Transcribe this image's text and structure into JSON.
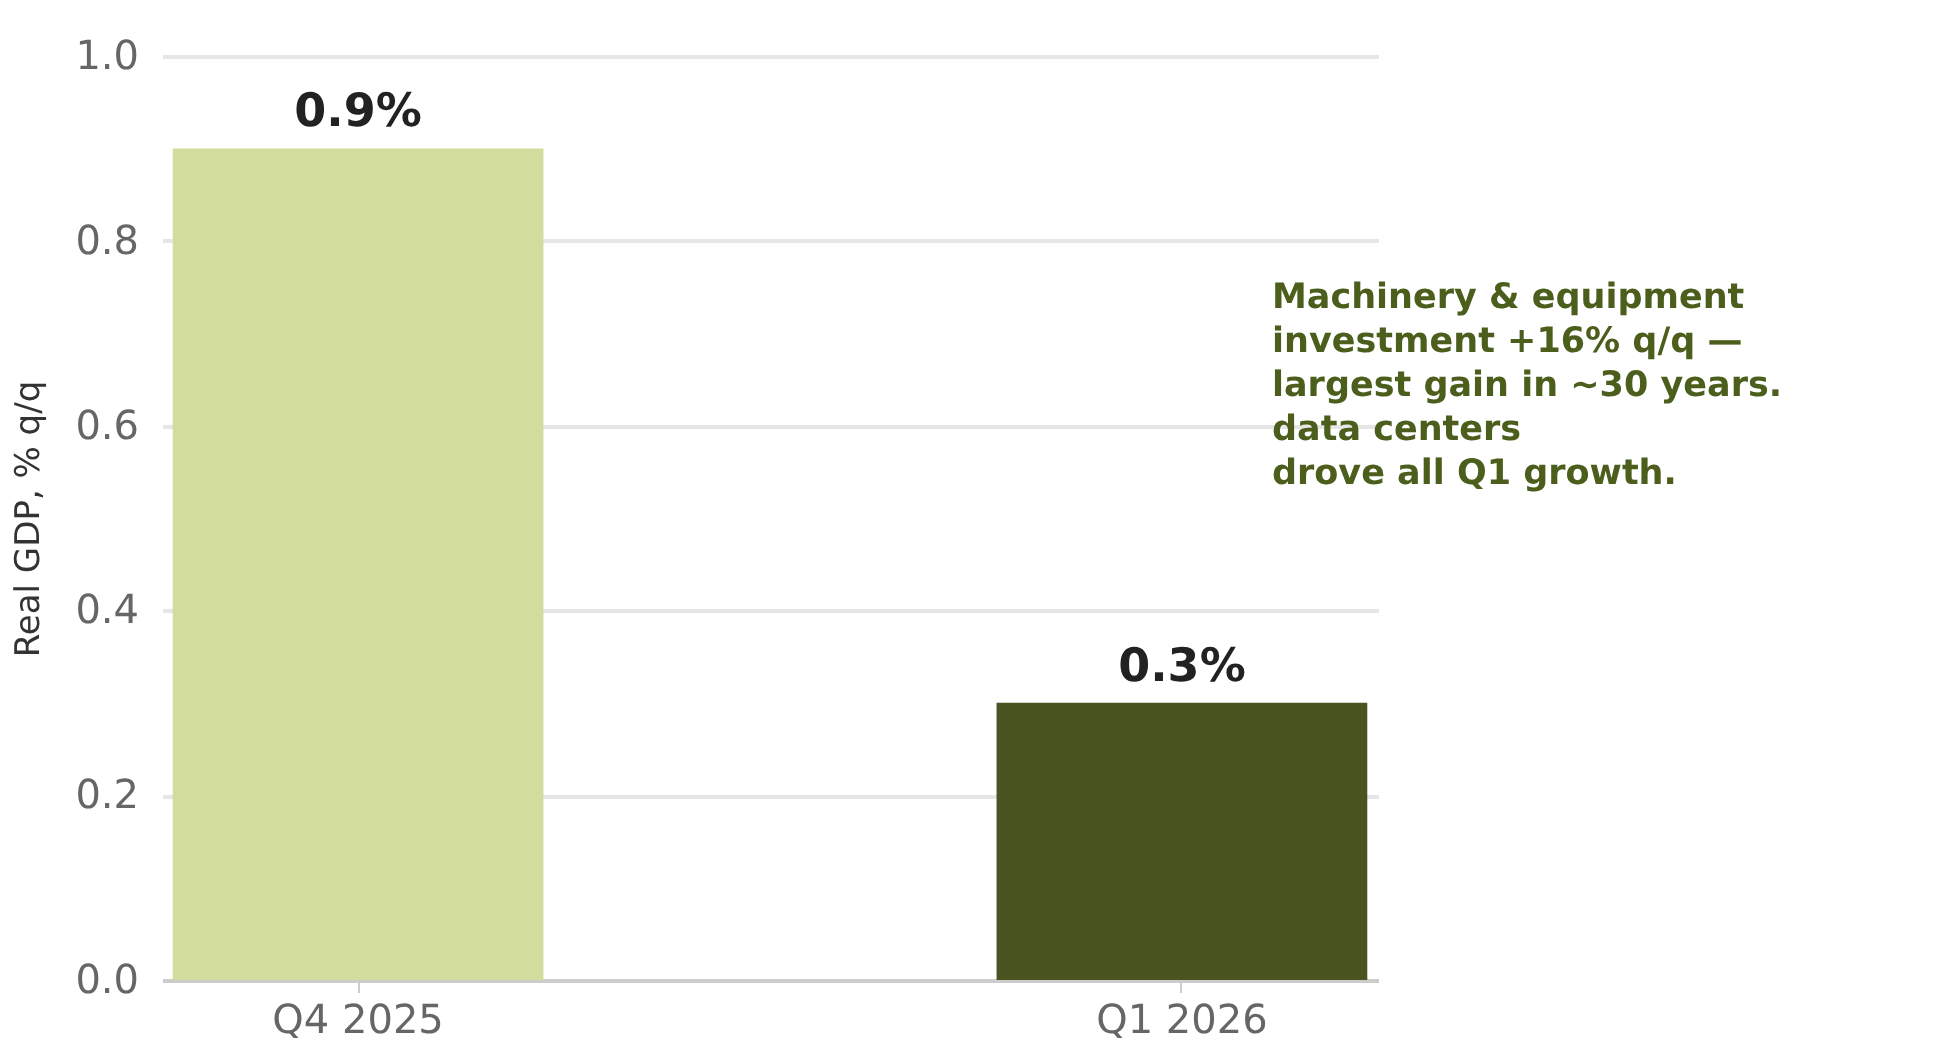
{
  "chart_data": {
    "type": "bar",
    "ylabel": "Real GDP, % q/q",
    "categories": [
      "Q4 2025",
      "Q1 2026"
    ],
    "values": [
      0.9,
      0.3
    ],
    "colors": [
      "#d2dc9c",
      "#4a5420"
    ],
    "value_labels": [
      "0.9%",
      "0.3%"
    ],
    "ylim": [
      0,
      1.0
    ],
    "yticks": [
      {
        "value": 0,
        "label": "0.0"
      },
      {
        "value": 0.2,
        "label": "0.2"
      },
      {
        "value": 0.4,
        "label": "0.4"
      },
      {
        "value": 0.6,
        "label": "0.6"
      },
      {
        "value": 0.8,
        "label": "0.8"
      },
      {
        "value": 1.0,
        "label": "1.0"
      }
    ],
    "grid": "y",
    "annotations": [
      "Machinery & equipment\ninvestment +16% q/q —\nlargest gain in ~30 years.\ndata centers\ndrove all Q1 growth."
    ]
  }
}
